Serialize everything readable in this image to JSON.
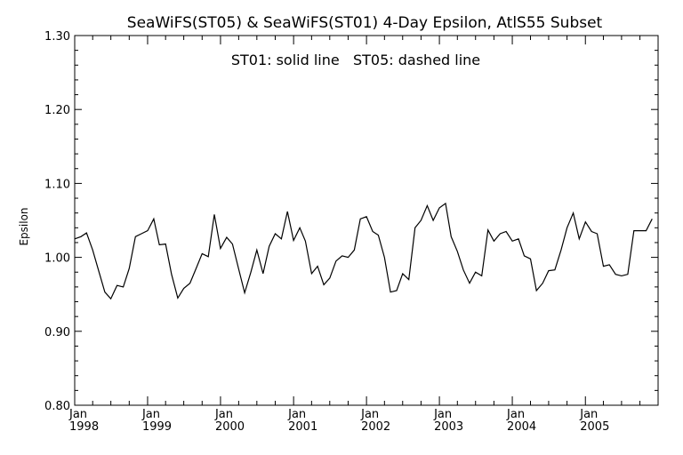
{
  "chart_data": {
    "type": "line",
    "title": "SeaWiFS(ST05) & SeaWiFS(ST01) 4-Day Epsilon, AtlS55 Subset",
    "annotation": "ST01: solid line   ST05: dashed line",
    "ylabel": "Epsilon",
    "xlabel": "",
    "ylim": [
      0.8,
      1.3
    ],
    "xlim": [
      "1998-01-01",
      "2005-12-31"
    ],
    "y_ticks": [
      "0.80",
      "0.90",
      "1.00",
      "1.10",
      "1.20",
      "1.30"
    ],
    "x_ticks": [
      {
        "month": "Jan",
        "year": "1998",
        "date": "1998-01-01"
      },
      {
        "month": "Jan",
        "year": "1999",
        "date": "1999-01-01"
      },
      {
        "month": "Jan",
        "year": "2000",
        "date": "2000-01-01"
      },
      {
        "month": "Jan",
        "year": "2001",
        "date": "2001-01-01"
      },
      {
        "month": "Jan",
        "year": "2002",
        "date": "2002-01-01"
      },
      {
        "month": "Jan",
        "year": "2003",
        "date": "2003-01-01"
      },
      {
        "month": "Jan",
        "year": "2004",
        "date": "2004-01-01"
      },
      {
        "month": "Jan",
        "year": "2005",
        "date": "2005-01-01"
      }
    ],
    "grid": false,
    "series": [
      {
        "style": "solid",
        "points": [
          [
            "1998-01-01",
            1.025
          ],
          [
            "1998-02-01",
            1.028
          ],
          [
            "1998-03-01",
            1.033
          ],
          [
            "1998-04-01",
            1.01
          ],
          [
            "1998-05-01",
            0.982
          ],
          [
            "1998-06-01",
            0.953
          ],
          [
            "1998-07-01",
            0.944
          ],
          [
            "1998-08-01",
            0.962
          ],
          [
            "1998-09-01",
            0.96
          ],
          [
            "1998-10-01",
            0.985
          ],
          [
            "1998-11-01",
            1.028
          ],
          [
            "1998-12-01",
            1.032
          ],
          [
            "1999-01-01",
            1.036
          ],
          [
            "1999-02-01",
            1.052
          ],
          [
            "1999-03-01",
            1.017
          ],
          [
            "1999-04-01",
            1.018
          ],
          [
            "1999-05-01",
            0.977
          ],
          [
            "1999-06-01",
            0.945
          ],
          [
            "1999-07-01",
            0.958
          ],
          [
            "1999-08-01",
            0.965
          ],
          [
            "1999-09-01",
            0.985
          ],
          [
            "1999-10-01",
            1.005
          ],
          [
            "1999-11-01",
            1.001
          ],
          [
            "1999-12-01",
            1.058
          ],
          [
            "2000-01-01",
            1.012
          ],
          [
            "2000-02-01",
            1.027
          ],
          [
            "2000-03-01",
            1.018
          ],
          [
            "2000-04-01",
            0.984
          ],
          [
            "2000-05-01",
            0.952
          ],
          [
            "2000-06-01",
            0.98
          ],
          [
            "2000-07-01",
            1.01
          ],
          [
            "2000-08-01",
            0.978
          ],
          [
            "2000-09-01",
            1.015
          ],
          [
            "2000-10-01",
            1.032
          ],
          [
            "2000-11-01",
            1.025
          ],
          [
            "2000-12-01",
            1.062
          ],
          [
            "2001-01-01",
            1.023
          ],
          [
            "2001-02-01",
            1.04
          ],
          [
            "2001-03-01",
            1.022
          ],
          [
            "2001-04-01",
            0.978
          ],
          [
            "2001-05-01",
            0.988
          ],
          [
            "2001-06-01",
            0.963
          ],
          [
            "2001-07-01",
            0.972
          ],
          [
            "2001-08-01",
            0.995
          ],
          [
            "2001-09-01",
            1.002
          ],
          [
            "2001-10-01",
            1.0
          ],
          [
            "2001-11-01",
            1.01
          ],
          [
            "2001-12-01",
            1.052
          ],
          [
            "2002-01-01",
            1.055
          ],
          [
            "2002-02-01",
            1.035
          ],
          [
            "2002-03-01",
            1.03
          ],
          [
            "2002-04-01",
            1.0
          ],
          [
            "2002-05-01",
            0.953
          ],
          [
            "2002-06-01",
            0.955
          ],
          [
            "2002-07-01",
            0.978
          ],
          [
            "2002-08-01",
            0.97
          ],
          [
            "2002-09-01",
            1.04
          ],
          [
            "2002-10-01",
            1.05
          ],
          [
            "2002-11-01",
            1.07
          ],
          [
            "2002-12-01",
            1.05
          ],
          [
            "2003-01-01",
            1.067
          ],
          [
            "2003-02-01",
            1.073
          ],
          [
            "2003-03-01",
            1.028
          ],
          [
            "2003-04-01",
            1.008
          ],
          [
            "2003-05-01",
            0.983
          ],
          [
            "2003-06-01",
            0.965
          ],
          [
            "2003-07-01",
            0.98
          ],
          [
            "2003-08-01",
            0.975
          ],
          [
            "2003-09-01",
            1.037
          ],
          [
            "2003-10-01",
            1.022
          ],
          [
            "2003-11-01",
            1.032
          ],
          [
            "2003-12-01",
            1.035
          ],
          [
            "2004-01-01",
            1.022
          ],
          [
            "2004-02-01",
            1.025
          ],
          [
            "2004-03-01",
            1.002
          ],
          [
            "2004-04-01",
            0.998
          ],
          [
            "2004-05-01",
            0.955
          ],
          [
            "2004-06-01",
            0.965
          ],
          [
            "2004-07-01",
            0.982
          ],
          [
            "2004-08-01",
            0.983
          ],
          [
            "2004-09-01",
            1.01
          ],
          [
            "2004-10-01",
            1.04
          ],
          [
            "2004-11-01",
            1.06
          ],
          [
            "2004-12-01",
            1.025
          ],
          [
            "2005-01-01",
            1.048
          ],
          [
            "2005-02-01",
            1.035
          ],
          [
            "2005-03-01",
            1.032
          ],
          [
            "2005-04-01",
            0.988
          ],
          [
            "2005-05-01",
            0.99
          ],
          [
            "2005-06-01",
            0.977
          ],
          [
            "2005-07-01",
            0.975
          ],
          [
            "2005-08-01",
            0.977
          ],
          [
            "2005-09-01",
            1.036
          ],
          [
            "2005-10-01",
            1.036
          ],
          [
            "2005-11-01",
            1.036
          ],
          [
            "2005-12-01",
            1.052
          ]
        ]
      }
    ]
  }
}
